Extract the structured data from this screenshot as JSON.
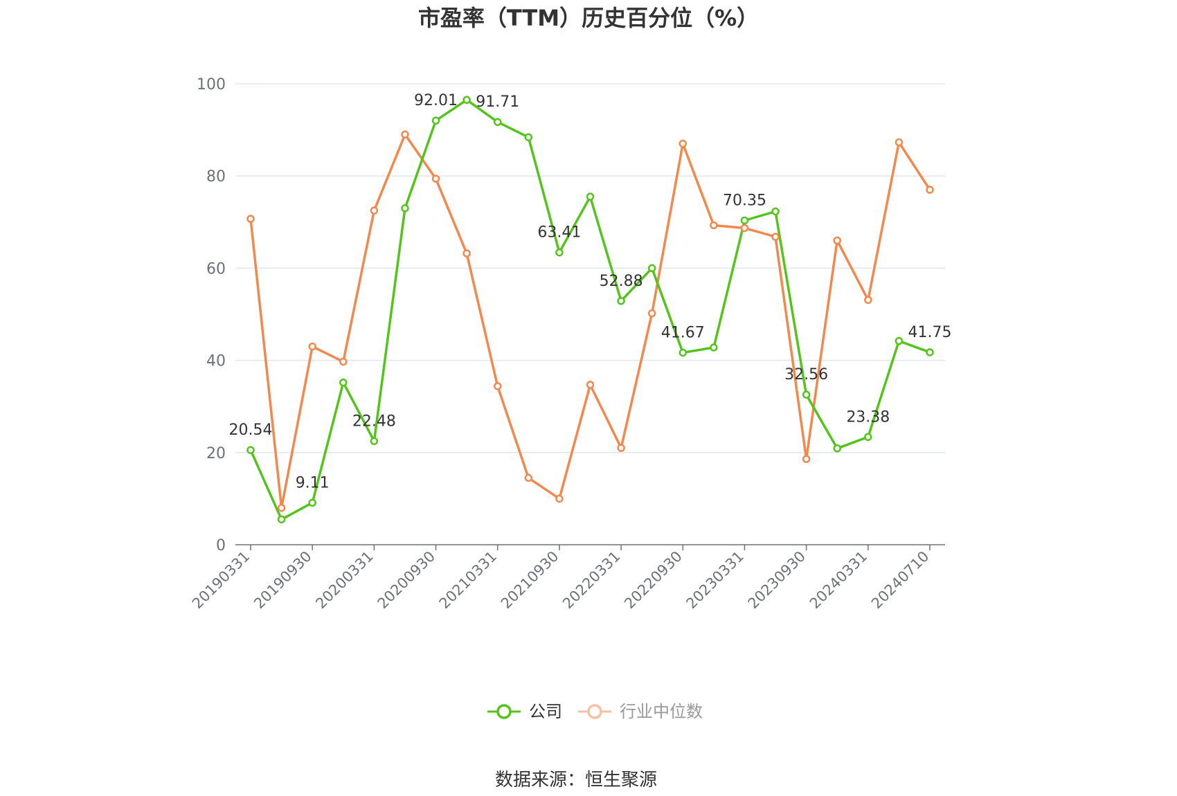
{
  "chart_data": {
    "type": "line",
    "title": "市盈率（TTM）历史百分位（%）",
    "source": "数据来源：恒生聚源",
    "ylim": [
      0,
      100
    ],
    "yticks": [
      0,
      20,
      40,
      60,
      80,
      100
    ],
    "grid": true,
    "legend_position": "bottom",
    "x": [
      "20190331",
      "20190630",
      "20190930",
      "20191231",
      "20200331",
      "20200630",
      "20200930",
      "20201231",
      "20210331",
      "20210630",
      "20210930",
      "20211231",
      "20220331",
      "20220630",
      "20220930",
      "20221231",
      "20230331",
      "20230630",
      "20230930",
      "20231231",
      "20240331",
      "20240630",
      "20240710"
    ],
    "x_tick_labels": [
      "20190331",
      "20190930",
      "20200331",
      "20200930",
      "20210331",
      "20210930",
      "20220331",
      "20220930",
      "20230331",
      "20230930",
      "20240331",
      "20240710"
    ],
    "series": [
      {
        "name": "公司",
        "color": "#52c41a",
        "values": [
          20.54,
          5.5,
          9.11,
          35.2,
          22.48,
          73.0,
          92.01,
          96.5,
          91.71,
          88.4,
          63.41,
          75.5,
          52.88,
          60.0,
          41.67,
          42.8,
          70.35,
          72.3,
          32.56,
          20.9,
          23.38,
          44.2,
          41.75
        ],
        "labeled_points": [
          {
            "index": 0,
            "label": "20.54"
          },
          {
            "index": 2,
            "label": "9.11"
          },
          {
            "index": 4,
            "label": "22.48"
          },
          {
            "index": 6,
            "label": "92.01"
          },
          {
            "index": 8,
            "label": "91.71"
          },
          {
            "index": 10,
            "label": "63.41"
          },
          {
            "index": 12,
            "label": "52.88"
          },
          {
            "index": 14,
            "label": "41.67"
          },
          {
            "index": 16,
            "label": "70.35"
          },
          {
            "index": 18,
            "label": "32.56"
          },
          {
            "index": 20,
            "label": "23.38"
          },
          {
            "index": 22,
            "label": "41.75"
          }
        ]
      },
      {
        "name": "行业中位数",
        "color": "#f4874b",
        "values": [
          70.7,
          8.0,
          43.0,
          39.7,
          72.5,
          89.0,
          79.4,
          63.2,
          34.4,
          14.5,
          10.0,
          34.7,
          21.0,
          50.2,
          87.0,
          69.3,
          68.7,
          66.8,
          18.6,
          66.0,
          53.1,
          87.3,
          77.0
        ]
      }
    ]
  },
  "legend": {
    "items": [
      {
        "name": "公司",
        "color": "#52c41a",
        "text_color": "#333333"
      },
      {
        "name": "行业中位数",
        "color": "#f4874b",
        "icon_color": "#f9bfa3",
        "text_color": "#999999"
      }
    ]
  }
}
